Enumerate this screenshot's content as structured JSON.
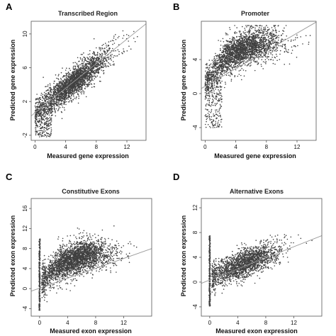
{
  "chart_data": [
    {
      "type": "scatter",
      "panel": "A",
      "title": "Transcribed Region",
      "xlabel": "Measured gene expression",
      "ylabel": "Predicted gene expression",
      "xlim": [
        -0.5,
        14.5
      ],
      "ylim": [
        -2.6,
        11.5
      ],
      "xticks": [
        0,
        4,
        8,
        12
      ],
      "yticks": [
        -2,
        2,
        6,
        10
      ],
      "color": "#404040",
      "fit_line": {
        "x": [
          -0.5,
          14.5
        ],
        "y": [
          0.3,
          11.2
        ]
      },
      "cloud": {
        "x_center": 5.0,
        "x_spread": 2.4,
        "x_min": 0,
        "x_max": 14.2,
        "slope": 0.7,
        "intercept": 0.7,
        "noise": 1.05,
        "y_min": -2.4,
        "y_max": 11.2,
        "bottom_band_y": [
          -2.2,
          1.5
        ],
        "n": 2600
      }
    },
    {
      "type": "scatter",
      "panel": "B",
      "title": "Promoter",
      "xlabel": "Measured gene expression",
      "ylabel": "Predicted gene expression",
      "xlim": [
        -0.5,
        14.5
      ],
      "ylim": [
        -5.5,
        8.5
      ],
      "xticks": [
        0,
        4,
        8,
        12
      ],
      "yticks": [
        -4,
        0,
        4
      ],
      "color": "#404040",
      "fit_line": {
        "x": [
          -0.5,
          14.5
        ],
        "y": [
          0.6,
          8.4
        ]
      },
      "cloud": {
        "x_center": 4.8,
        "x_spread": 2.6,
        "x_min": 0,
        "x_max": 14.0,
        "saturating": true,
        "asymptote": 6.2,
        "rate": 0.35,
        "base": 0.8,
        "noise": 1.25,
        "y_min": -4.8,
        "y_max": 8.0,
        "bottom_band_y": [
          -4.0,
          2.5
        ],
        "n": 2600
      }
    },
    {
      "type": "scatter",
      "panel": "C",
      "title": "Constitutive Exons",
      "xlabel": "Measured exon expression",
      "ylabel": "Predicted exon expression",
      "xlim": [
        -1.2,
        16.0
      ],
      "ylim": [
        -5.5,
        18.0
      ],
      "xticks": [
        0,
        4,
        8,
        12
      ],
      "yticks": [
        -4,
        0,
        4,
        8,
        12,
        16
      ],
      "color": "#404040",
      "fit_line": {
        "x": [
          -1.2,
          16.0
        ],
        "y": [
          -0.5,
          8.0
        ]
      },
      "cloud": {
        "x_center": 5.0,
        "x_spread": 2.6,
        "x_min": 0.3,
        "x_max": 15.0,
        "saturating": true,
        "asymptote": 7.2,
        "rate": 0.35,
        "base": 0.5,
        "noise": 2.0,
        "y_min": -4.8,
        "y_max": 17.0,
        "stripe_x": 0.0,
        "stripe_y": [
          -4.5,
          10.0
        ],
        "n": 2800
      }
    },
    {
      "type": "scatter",
      "panel": "D",
      "title": "Alternative Exons",
      "xlabel": "Measured exon expression",
      "ylabel": "Predicted exon expression",
      "xlim": [
        -1.2,
        16.0
      ],
      "ylim": [
        -5.5,
        13.5
      ],
      "xticks": [
        0,
        4,
        8,
        12
      ],
      "yticks": [
        -4,
        0,
        4,
        8,
        12
      ],
      "color": "#404040",
      "fit_line": {
        "x": [
          -1.2,
          16.0
        ],
        "y": [
          -0.2,
          7.5
        ]
      },
      "cloud": {
        "x_center": 4.8,
        "x_spread": 2.6,
        "x_min": 0.3,
        "x_max": 15.0,
        "slope": 0.45,
        "intercept": 0.8,
        "noise": 1.4,
        "y_min": -4.5,
        "y_max": 12.5,
        "stripe_x": 0.0,
        "stripe_y": [
          -4.0,
          7.5
        ],
        "n": 2000
      }
    }
  ]
}
